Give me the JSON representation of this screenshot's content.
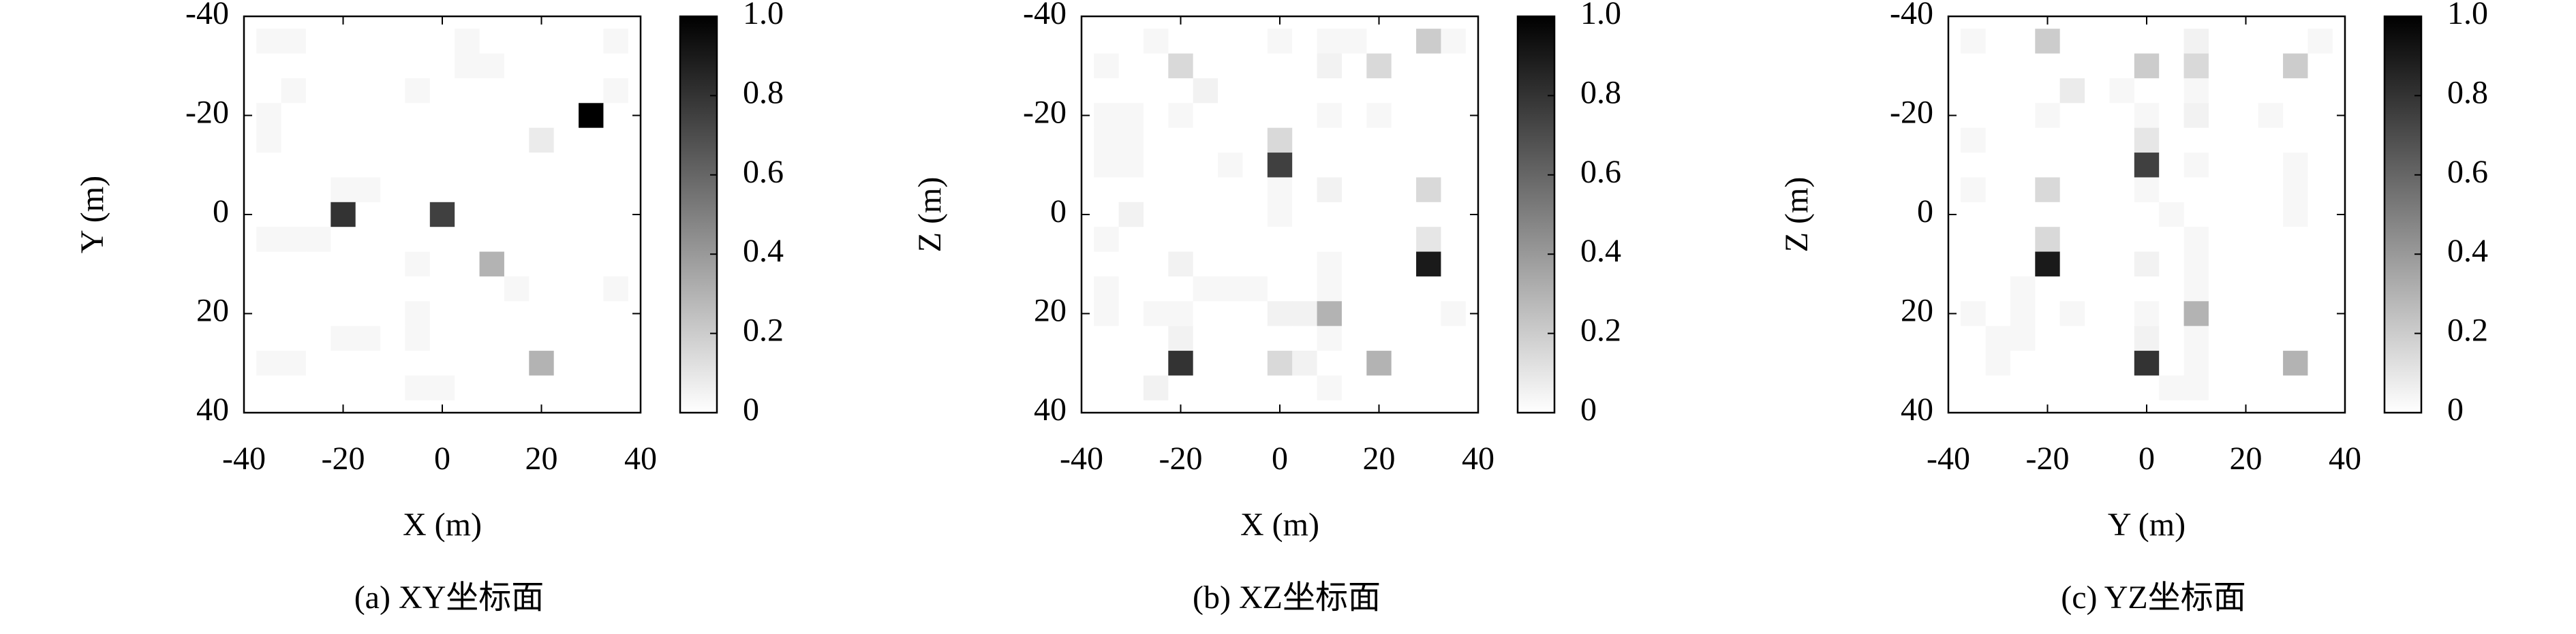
{
  "chart_data": [
    {
      "type": "heatmap",
      "caption": "(a) XY坐标面",
      "xlabel": "X (m)",
      "ylabel": "Y (m)",
      "x": [
        -40,
        -35,
        -30,
        -25,
        -20,
        -15,
        -10,
        -5,
        0,
        5,
        10,
        15,
        20,
        25,
        30,
        35,
        40
      ],
      "y": [
        -40,
        -35,
        -30,
        -25,
        -20,
        -15,
        -10,
        -5,
        0,
        5,
        10,
        15,
        20,
        25,
        30,
        35,
        40
      ],
      "z": [
        [
          0,
          0,
          0,
          0,
          0,
          0,
          0,
          0,
          0,
          0,
          0,
          0,
          0,
          0,
          0,
          0,
          0
        ],
        [
          0,
          0.03,
          0.03,
          0,
          0,
          0,
          0,
          0,
          0,
          0.03,
          0,
          0,
          0,
          0,
          0,
          0.03,
          0
        ],
        [
          0,
          0,
          0,
          0,
          0,
          0,
          0,
          0,
          0,
          0.03,
          0.03,
          0,
          0,
          0,
          0,
          0,
          0
        ],
        [
          0,
          0,
          0.03,
          0,
          0,
          0,
          0,
          0.03,
          0,
          0,
          0,
          0,
          0,
          0,
          0,
          0.03,
          0
        ],
        [
          0,
          0.03,
          0,
          0,
          0,
          0,
          0,
          0,
          0,
          0,
          0,
          0,
          0,
          0,
          1,
          0,
          0
        ],
        [
          0,
          0.03,
          0,
          0,
          0,
          0,
          0,
          0,
          0,
          0,
          0,
          0,
          0.08,
          0,
          0,
          0,
          0
        ],
        [
          0,
          0,
          0,
          0,
          0,
          0,
          0,
          0,
          0,
          0,
          0,
          0,
          0,
          0,
          0,
          0,
          0
        ],
        [
          0,
          0,
          0,
          0,
          0.03,
          0.03,
          0,
          0,
          0,
          0,
          0,
          0,
          0,
          0,
          0,
          0,
          0
        ],
        [
          0,
          0,
          0,
          0,
          0.8,
          0,
          0,
          0,
          0.75,
          0,
          0,
          0,
          0,
          0,
          0,
          0,
          0
        ],
        [
          0,
          0.03,
          0.03,
          0.03,
          0,
          0,
          0,
          0,
          0,
          0,
          0,
          0,
          0,
          0,
          0,
          0,
          0
        ],
        [
          0,
          0,
          0,
          0,
          0,
          0,
          0,
          0.03,
          0,
          0,
          0.3,
          0,
          0,
          0,
          0,
          0,
          0
        ],
        [
          0,
          0,
          0,
          0,
          0,
          0,
          0,
          0,
          0,
          0,
          0,
          0.03,
          0,
          0,
          0,
          0.03,
          0
        ],
        [
          0,
          0,
          0,
          0,
          0,
          0,
          0,
          0.03,
          0,
          0,
          0,
          0,
          0,
          0,
          0,
          0,
          0
        ],
        [
          0,
          0,
          0,
          0,
          0.03,
          0.03,
          0,
          0.03,
          0,
          0,
          0,
          0,
          0,
          0,
          0,
          0,
          0
        ],
        [
          0,
          0.03,
          0.03,
          0,
          0,
          0,
          0,
          0,
          0,
          0,
          0,
          0,
          0.3,
          0,
          0,
          0,
          0
        ],
        [
          0,
          0,
          0,
          0,
          0,
          0,
          0,
          0.03,
          0.03,
          0,
          0,
          0,
          0,
          0,
          0,
          0,
          0
        ],
        [
          0,
          0,
          0,
          0,
          0,
          0,
          0,
          0,
          0,
          0,
          0,
          0,
          0,
          0,
          0,
          0,
          0
        ]
      ],
      "xlim": [
        -40,
        40
      ],
      "ylim": [
        40,
        -40
      ],
      "xticks": [
        -40,
        -20,
        0,
        20,
        40
      ],
      "yticks": [
        -40,
        -20,
        0,
        20,
        40
      ],
      "clim": [
        0,
        1
      ],
      "cticks": [
        0,
        0.2,
        0.4,
        0.6,
        0.8,
        {
          "value": 1,
          "label": "1.0"
        }
      ],
      "colors": [
        "#ffffff",
        "#000000"
      ]
    },
    {
      "type": "heatmap",
      "caption": "(b) XZ坐标面",
      "xlabel": "X (m)",
      "ylabel": "Z (m)",
      "x": [
        -40,
        -35,
        -30,
        -25,
        -20,
        -15,
        -10,
        -5,
        0,
        5,
        10,
        15,
        20,
        25,
        30,
        35,
        40
      ],
      "y": [
        -40,
        -35,
        -30,
        -25,
        -20,
        -15,
        -10,
        -5,
        0,
        5,
        10,
        15,
        20,
        25,
        30,
        35,
        40
      ],
      "z": [
        [
          0,
          0,
          0,
          0,
          0,
          0,
          0,
          0,
          0,
          0,
          0,
          0,
          0,
          0,
          0,
          0,
          0
        ],
        [
          0,
          0,
          0,
          0.03,
          0,
          0,
          0,
          0,
          0.03,
          0,
          0.03,
          0.03,
          0,
          0,
          0.2,
          0.03,
          0
        ],
        [
          0,
          0.03,
          0,
          0,
          0.15,
          0,
          0,
          0,
          0,
          0,
          0.05,
          0,
          0.15,
          0,
          0,
          0,
          0
        ],
        [
          0,
          0,
          0,
          0,
          0,
          0.05,
          0,
          0,
          0,
          0,
          0,
          0,
          0,
          0,
          0,
          0,
          0
        ],
        [
          0,
          0.03,
          0.03,
          0,
          0.03,
          0,
          0,
          0,
          0,
          0,
          0.03,
          0,
          0.03,
          0,
          0,
          0,
          0
        ],
        [
          0,
          0.03,
          0.03,
          0,
          0,
          0,
          0,
          0,
          0.15,
          0,
          0,
          0,
          0,
          0,
          0,
          0,
          0
        ],
        [
          0,
          0.03,
          0.03,
          0,
          0,
          0,
          0.03,
          0,
          0.75,
          0,
          0,
          0,
          0,
          0,
          0,
          0,
          0
        ],
        [
          0,
          0,
          0,
          0,
          0,
          0,
          0,
          0,
          0.03,
          0,
          0.05,
          0,
          0,
          0,
          0.15,
          0,
          0
        ],
        [
          0,
          0,
          0.05,
          0,
          0,
          0,
          0,
          0,
          0.03,
          0,
          0,
          0,
          0,
          0,
          0,
          0,
          0
        ],
        [
          0,
          0.03,
          0,
          0,
          0,
          0,
          0,
          0,
          0,
          0,
          0,
          0,
          0,
          0,
          0.1,
          0,
          0
        ],
        [
          0,
          0,
          0,
          0,
          0.05,
          0,
          0,
          0,
          0,
          0,
          0.03,
          0,
          0,
          0,
          0.9,
          0,
          0
        ],
        [
          0,
          0.03,
          0,
          0,
          0,
          0.03,
          0.03,
          0.03,
          0,
          0,
          0.03,
          0,
          0,
          0,
          0,
          0,
          0
        ],
        [
          0,
          0.03,
          0,
          0.03,
          0.03,
          0,
          0,
          0,
          0.05,
          0.05,
          0.3,
          0,
          0,
          0,
          0,
          0.03,
          0
        ],
        [
          0,
          0,
          0,
          0,
          0.05,
          0,
          0,
          0,
          0,
          0,
          0.03,
          0,
          0,
          0,
          0,
          0,
          0
        ],
        [
          0,
          0,
          0,
          0,
          0.8,
          0,
          0,
          0,
          0.15,
          0.05,
          0,
          0,
          0.3,
          0,
          0,
          0,
          0
        ],
        [
          0,
          0,
          0,
          0.05,
          0,
          0,
          0,
          0,
          0,
          0,
          0.03,
          0,
          0,
          0,
          0,
          0,
          0
        ],
        [
          0,
          0,
          0,
          0,
          0,
          0,
          0,
          0,
          0,
          0,
          0,
          0,
          0,
          0,
          0,
          0,
          0
        ]
      ],
      "xlim": [
        -40,
        40
      ],
      "ylim": [
        40,
        -40
      ],
      "xticks": [
        -40,
        -20,
        0,
        20,
        40
      ],
      "yticks": [
        -40,
        -20,
        0,
        20,
        40
      ],
      "clim": [
        0,
        1
      ],
      "cticks": [
        0,
        0.2,
        0.4,
        0.6,
        0.8,
        {
          "value": 1,
          "label": "1.0"
        }
      ],
      "colors": [
        "#ffffff",
        "#000000"
      ]
    },
    {
      "type": "heatmap",
      "caption": "(c) YZ坐标面",
      "xlabel": "Y (m)",
      "ylabel": "Z (m)",
      "x": [
        -40,
        -35,
        -30,
        -25,
        -20,
        -15,
        -10,
        -5,
        0,
        5,
        10,
        15,
        20,
        25,
        30,
        35,
        40
      ],
      "y": [
        -40,
        -35,
        -30,
        -25,
        -20,
        -15,
        -10,
        -5,
        0,
        5,
        10,
        15,
        20,
        25,
        30,
        35,
        40
      ],
      "z": [
        [
          0,
          0,
          0,
          0,
          0,
          0,
          0,
          0,
          0,
          0,
          0,
          0,
          0,
          0,
          0,
          0,
          0
        ],
        [
          0,
          0.03,
          0,
          0,
          0.2,
          0,
          0,
          0,
          0,
          0,
          0.05,
          0,
          0,
          0,
          0,
          0.03,
          0
        ],
        [
          0,
          0,
          0,
          0,
          0,
          0,
          0,
          0,
          0.2,
          0,
          0.15,
          0,
          0,
          0,
          0.2,
          0,
          0
        ],
        [
          0,
          0,
          0,
          0,
          0,
          0.08,
          0,
          0.03,
          0,
          0,
          0.03,
          0,
          0,
          0,
          0,
          0,
          0
        ],
        [
          0,
          0,
          0,
          0,
          0.03,
          0,
          0,
          0,
          0.03,
          0,
          0.05,
          0,
          0,
          0.03,
          0,
          0,
          0
        ],
        [
          0,
          0.03,
          0,
          0,
          0,
          0,
          0,
          0,
          0.1,
          0,
          0,
          0,
          0,
          0,
          0,
          0,
          0
        ],
        [
          0,
          0,
          0,
          0,
          0,
          0,
          0,
          0,
          0.75,
          0,
          0.03,
          0,
          0,
          0,
          0.03,
          0,
          0
        ],
        [
          0,
          0.03,
          0,
          0,
          0.15,
          0,
          0,
          0,
          0.03,
          0,
          0,
          0,
          0,
          0,
          0.03,
          0,
          0
        ],
        [
          0,
          0,
          0,
          0,
          0,
          0,
          0,
          0,
          0,
          0.03,
          0,
          0,
          0,
          0,
          0.03,
          0,
          0
        ],
        [
          0,
          0,
          0,
          0,
          0.15,
          0,
          0,
          0,
          0,
          0,
          0.03,
          0,
          0,
          0,
          0,
          0,
          0
        ],
        [
          0,
          0,
          0,
          0,
          0.9,
          0,
          0,
          0,
          0.05,
          0,
          0.03,
          0,
          0,
          0,
          0,
          0,
          0
        ],
        [
          0,
          0,
          0,
          0.03,
          0,
          0,
          0,
          0,
          0,
          0,
          0.03,
          0,
          0,
          0,
          0,
          0,
          0
        ],
        [
          0,
          0.03,
          0,
          0.03,
          0,
          0.03,
          0,
          0,
          0.03,
          0,
          0.3,
          0,
          0,
          0,
          0,
          0,
          0
        ],
        [
          0,
          0,
          0.03,
          0.03,
          0,
          0,
          0,
          0,
          0.05,
          0,
          0.03,
          0,
          0,
          0,
          0,
          0,
          0
        ],
        [
          0,
          0,
          0.03,
          0,
          0,
          0,
          0,
          0,
          0.8,
          0,
          0.03,
          0,
          0,
          0,
          0.3,
          0,
          0
        ],
        [
          0,
          0,
          0,
          0,
          0,
          0,
          0,
          0,
          0,
          0.03,
          0.03,
          0,
          0,
          0,
          0,
          0,
          0
        ],
        [
          0,
          0,
          0,
          0,
          0,
          0,
          0,
          0,
          0,
          0,
          0,
          0,
          0,
          0,
          0,
          0,
          0
        ]
      ],
      "xlim": [
        -40,
        40
      ],
      "ylim": [
        40,
        -40
      ],
      "xticks": [
        -40,
        -20,
        0,
        20,
        40
      ],
      "yticks": [
        -40,
        -20,
        0,
        20,
        40
      ],
      "clim": [
        0,
        1
      ],
      "cticks": [
        0,
        0.2,
        0.4,
        0.6,
        0.8,
        {
          "value": 1,
          "label": "1.0"
        }
      ],
      "colors": [
        "#ffffff",
        "#000000"
      ]
    }
  ]
}
